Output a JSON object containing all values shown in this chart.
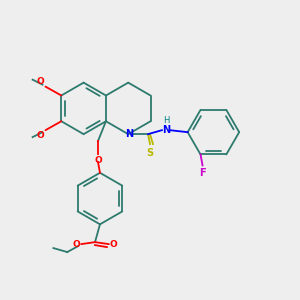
{
  "bg_color": "#eeeeee",
  "bond_color": "#2d7a6e",
  "atom_colors": {
    "O": "#ff0000",
    "N": "#0000ff",
    "S": "#b8b800",
    "F": "#cc00cc",
    "H": "#008080",
    "C": "#2d7a6e"
  },
  "figsize": [
    3.0,
    3.0
  ],
  "dpi": 100
}
